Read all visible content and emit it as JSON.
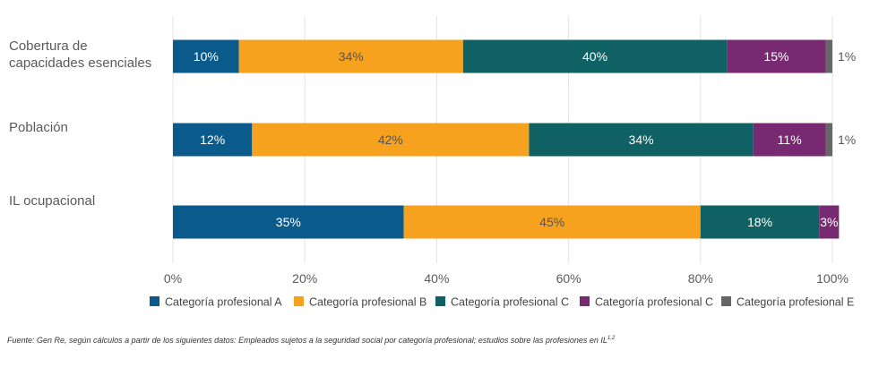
{
  "chart_data": {
    "type": "bar",
    "orientation": "horizontal",
    "stacked": true,
    "categories": [
      "Cobertura de capacidades esenciales",
      "Población",
      "IL ocupacional"
    ],
    "category_lines": [
      [
        "Cobertura de",
        "capacidades esenciales"
      ],
      [
        "Población"
      ],
      [
        "IL ocupacional"
      ]
    ],
    "series": [
      {
        "name": "Categoría profesional  A",
        "color": "#0b5a8c",
        "label_color": "#ffffff",
        "values": [
          10,
          12,
          35
        ],
        "labels": [
          "10%",
          "12%",
          "35%"
        ]
      },
      {
        "name": "Categoría profesional  B",
        "color": "#f6a21f",
        "label_color": "#555555",
        "values": [
          34,
          42,
          45
        ],
        "labels": [
          "34%",
          "42%",
          "45%"
        ]
      },
      {
        "name": "Categoría profesional  C",
        "color": "#0f6163",
        "label_color": "#ffffff",
        "values": [
          40,
          34,
          18
        ],
        "labels": [
          "40%",
          "34%",
          "18%"
        ]
      },
      {
        "name": "Categoría profesional  C",
        "color": "#772a72",
        "label_color": "#ffffff",
        "values": [
          15,
          11,
          3
        ],
        "labels": [
          "15%",
          "11%",
          "3%"
        ]
      },
      {
        "name": "Categoría profesional  E",
        "color": "#666666",
        "label_color": "#555555",
        "values": [
          1,
          1,
          0
        ],
        "labels": [
          "1%",
          "1%",
          ""
        ]
      }
    ],
    "xlim": [
      0,
      100
    ],
    "xticks": [
      0,
      20,
      40,
      60,
      80,
      100
    ],
    "xtick_labels": [
      "0%",
      "20%",
      "40%",
      "60%",
      "80%",
      "100%"
    ],
    "grid": "vertical",
    "legend_position": "bottom"
  },
  "footnote": {
    "text": "Fuente: Gen Re, según cálculos a partir de los siguientes datos: Empleados sujetos a la seguridad social por categoría profesional; estudios sobre las profesiones en IL",
    "superscript": "1,2"
  }
}
